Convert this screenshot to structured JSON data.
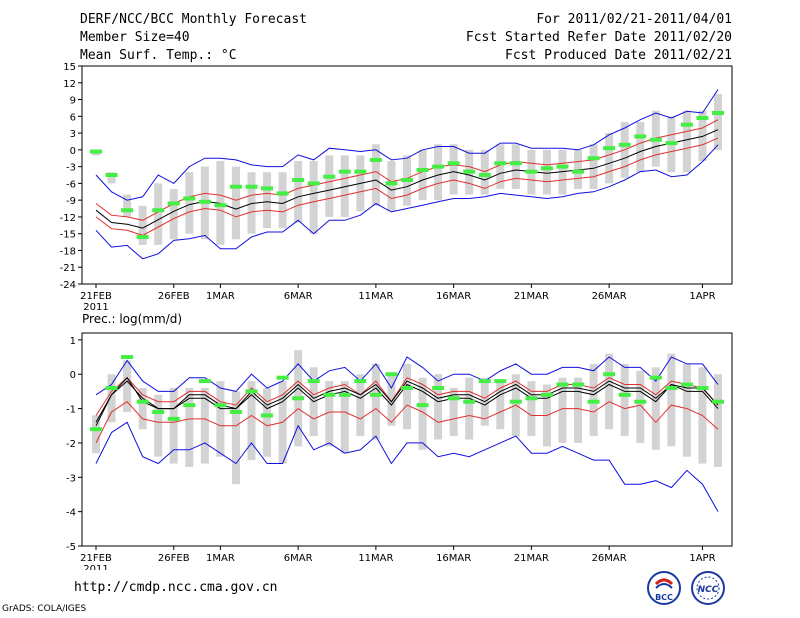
{
  "header": {
    "title": "DERF/NCC/BCC Monthly Forecast",
    "member_size": "Member Size=40",
    "variable": "Mean Surf. Temp.: °C",
    "period": "For 2011/02/21-2011/04/01",
    "started": "Fcst Started Refer Date 2011/02/20",
    "produced": "Fcst Produced Date 2011/02/21"
  },
  "footer": {
    "url": "http://cmdp.ncc.cma.gov.cn",
    "credit": "GrADS: COLA/IGES",
    "logo_bcc": "BCC",
    "logo_ncc": "NCC"
  },
  "colors": {
    "ensemble_mean": "#000000",
    "spread_inner": "#e03030",
    "spread_outer": "#1010e0",
    "member_range": "#d3d3d3",
    "observation": "#44ee44"
  },
  "chart_data": [
    {
      "type": "line",
      "title": "Mean Surf. Temp.: °C",
      "ylim": [
        -24,
        15
      ],
      "yticks": [
        15,
        12,
        9,
        6,
        3,
        0,
        -3,
        -6,
        -9,
        -12,
        -15,
        -18,
        -21,
        -24
      ],
      "xticks": [
        {
          "i": 0,
          "label": "21FEB",
          "sub": "2011"
        },
        {
          "i": 5,
          "label": "26FEB",
          "sub": ""
        },
        {
          "i": 8,
          "label": "1MAR",
          "sub": ""
        },
        {
          "i": 13,
          "label": "6MAR",
          "sub": ""
        },
        {
          "i": 18,
          "label": "11MAR",
          "sub": ""
        },
        {
          "i": 23,
          "label": "16MAR",
          "sub": ""
        },
        {
          "i": 28,
          "label": "21MAR",
          "sub": ""
        },
        {
          "i": 33,
          "label": "26MAR",
          "sub": ""
        },
        {
          "i": 39,
          "label": "1APR",
          "sub": ""
        }
      ],
      "series": [
        {
          "name": "ensemble mean",
          "color": "#000000",
          "values": [
            -10.8,
            -13,
            -13.3,
            -14,
            -12.5,
            -11,
            -9.8,
            -9.2,
            -9.6,
            -10.6,
            -9.6,
            -9.3,
            -9.6,
            -8.4,
            -7.8,
            -7.2,
            -6.6,
            -6.0,
            -5.4,
            -7.2,
            -6.6,
            -5.4,
            -4.5,
            -3.9,
            -4.5,
            -5.4,
            -4.2,
            -3.6,
            -3.9,
            -4.2,
            -3.9,
            -3.6,
            -3.3,
            -2.4,
            -1.5,
            -0.3,
            0.6,
            1.2,
            1.8,
            2.4,
            3.6
          ]
        },
        {
          "name": "inner spread (red) upper",
          "color": "#e03030",
          "values": [
            -9.6,
            -11.7,
            -12.0,
            -12.6,
            -11.1,
            -9.6,
            -8.4,
            -7.8,
            -8.1,
            -9.0,
            -8.1,
            -7.8,
            -8.1,
            -6.9,
            -6.3,
            -5.7,
            -5.1,
            -4.5,
            -3.9,
            -5.7,
            -5.1,
            -3.9,
            -3.0,
            -2.7,
            -3.0,
            -3.9,
            -2.7,
            -2.1,
            -2.4,
            -2.7,
            -2.4,
            -2.1,
            -1.8,
            -0.9,
            0.0,
            1.2,
            2.1,
            2.7,
            3.3,
            3.9,
            5.4
          ]
        },
        {
          "name": "inner spread (red) lower",
          "color": "#e03030",
          "values": [
            -12.0,
            -14.1,
            -14.4,
            -15.3,
            -13.8,
            -12.3,
            -11.1,
            -10.5,
            -10.8,
            -12.0,
            -11.1,
            -10.8,
            -11.1,
            -9.9,
            -9.3,
            -8.7,
            -8.1,
            -7.5,
            -6.9,
            -8.7,
            -8.1,
            -6.9,
            -6.0,
            -5.4,
            -6.0,
            -6.9,
            -5.7,
            -5.1,
            -5.4,
            -5.7,
            -5.4,
            -5.1,
            -4.8,
            -3.9,
            -3.0,
            -1.8,
            -0.9,
            -0.3,
            0.3,
            0.9,
            2.1
          ]
        },
        {
          "name": "outer spread (blue) upper",
          "color": "#1010e0",
          "values": [
            -4.5,
            -7.5,
            -9.0,
            -8.4,
            -4.5,
            -6.0,
            -3.0,
            -1.5,
            -1.5,
            -1.8,
            -2.7,
            -3.0,
            -3.0,
            -0.9,
            -1.8,
            0.3,
            0.0,
            -0.3,
            0.0,
            -1.8,
            -1.5,
            0.0,
            0.6,
            0.6,
            -0.6,
            -0.6,
            1.2,
            1.2,
            0.3,
            0.3,
            0.3,
            0.0,
            0.9,
            2.7,
            3.9,
            5.4,
            6.6,
            5.7,
            6.9,
            6.6,
            10.8
          ]
        },
        {
          "name": "outer spread (blue) lower",
          "color": "#1010e0",
          "values": [
            -14.4,
            -17.4,
            -17.1,
            -19.5,
            -18.6,
            -16.2,
            -15.9,
            -15.3,
            -17.7,
            -17.7,
            -15.6,
            -14.7,
            -14.7,
            -12.6,
            -15.0,
            -12.6,
            -12.6,
            -11.7,
            -9.6,
            -11.1,
            -10.5,
            -9.9,
            -9.3,
            -8.7,
            -8.7,
            -8.4,
            -7.8,
            -8.1,
            -8.4,
            -8.7,
            -8.4,
            -7.8,
            -7.5,
            -6.6,
            -5.4,
            -3.9,
            -3.6,
            -4.8,
            -4.5,
            -2.1,
            0.9
          ]
        }
      ],
      "bars_low": [
        -1,
        -6,
        -12,
        -17,
        -17,
        -16,
        -15,
        -16,
        -17,
        -16,
        -15,
        -14,
        -14,
        -13,
        -15,
        -12,
        -12,
        -11,
        -10,
        -11,
        -10,
        -9,
        -9,
        -8,
        -8,
        -8,
        -7,
        -7,
        -8,
        -8,
        -8,
        -7,
        -7,
        -6,
        -5,
        -4,
        -3,
        -4,
        -4,
        -2,
        0
      ],
      "bars_high": [
        0,
        -4,
        -8,
        -10,
        -6,
        -7,
        -4,
        -3,
        -2,
        -3,
        -4,
        -4,
        -4,
        -2,
        -2,
        -1,
        -1,
        -1,
        1,
        -2,
        -1,
        0,
        1,
        1,
        0,
        0,
        1,
        1,
        0,
        0,
        0,
        0,
        1,
        3,
        5,
        5,
        7,
        6,
        7,
        7,
        10
      ],
      "observations": [
        -0.3,
        -4.5,
        -10.8,
        -15.6,
        -10.8,
        -9.6,
        -8.7,
        -9.3,
        -9.9,
        -6.6,
        -6.6,
        -6.9,
        -7.8,
        -5.4,
        -6.0,
        -4.8,
        -3.9,
        -3.9,
        -1.8,
        -6.0,
        -5.4,
        -3.6,
        -3.0,
        -2.4,
        -3.9,
        -4.5,
        -2.4,
        -2.4,
        -3.9,
        -3.3,
        -3.0,
        -3.9,
        -1.5,
        0.3,
        0.9,
        2.4,
        1.8,
        1.2,
        4.5,
        5.7,
        6.6
      ]
    },
    {
      "type": "line",
      "title": "Prec.: log(mm/d)",
      "ylim": [
        -5,
        1.2
      ],
      "yticks": [
        1,
        0,
        -1,
        -2,
        -3,
        -4,
        -5
      ],
      "xticks": [
        {
          "i": 0,
          "label": "21FEB",
          "sub": "2011"
        },
        {
          "i": 5,
          "label": "26FEB",
          "sub": ""
        },
        {
          "i": 8,
          "label": "1MAR",
          "sub": ""
        },
        {
          "i": 13,
          "label": "6MAR",
          "sub": ""
        },
        {
          "i": 18,
          "label": "11MAR",
          "sub": ""
        },
        {
          "i": 23,
          "label": "16MAR",
          "sub": ""
        },
        {
          "i": 28,
          "label": "21MAR",
          "sub": ""
        },
        {
          "i": 33,
          "label": "26MAR",
          "sub": ""
        },
        {
          "i": 39,
          "label": "1APR",
          "sub": ""
        }
      ],
      "series": [
        {
          "name": "ensemble mean",
          "color": "#000000",
          "values": [
            -1.5,
            -0.6,
            -0.2,
            -0.7,
            -1.0,
            -1.0,
            -0.7,
            -0.7,
            -1.0,
            -1.0,
            -0.6,
            -1.0,
            -0.8,
            -0.4,
            -0.8,
            -0.6,
            -0.5,
            -0.7,
            -0.4,
            -0.9,
            -0.3,
            -0.5,
            -0.8,
            -0.7,
            -0.7,
            -0.9,
            -0.6,
            -0.4,
            -0.7,
            -0.7,
            -0.5,
            -0.5,
            -0.6,
            -0.3,
            -0.5,
            -0.5,
            -0.8,
            -0.3,
            -0.5,
            -0.5,
            -1.0
          ]
        },
        {
          "name": "inner spread (red) upper",
          "color": "#e03030",
          "values": [
            -1.2,
            -0.5,
            -0.1,
            -0.6,
            -0.8,
            -0.8,
            -0.5,
            -0.5,
            -0.8,
            -0.9,
            -0.4,
            -0.8,
            -0.6,
            -0.2,
            -0.6,
            -0.4,
            -0.3,
            -0.6,
            -0.2,
            -0.8,
            -0.1,
            -0.3,
            -0.6,
            -0.5,
            -0.5,
            -0.7,
            -0.4,
            -0.2,
            -0.5,
            -0.5,
            -0.3,
            -0.3,
            -0.4,
            -0.1,
            -0.3,
            -0.3,
            -0.6,
            -0.2,
            -0.3,
            -0.4,
            -0.9
          ]
        },
        {
          "name": "inner spread (red) lower",
          "color": "#e03030",
          "values": [
            -2.0,
            -1.1,
            -0.8,
            -1.3,
            -1.4,
            -1.4,
            -1.3,
            -1.3,
            -1.5,
            -1.5,
            -1.2,
            -1.5,
            -1.4,
            -1.0,
            -1.3,
            -1.1,
            -1.1,
            -1.3,
            -1.0,
            -1.4,
            -0.9,
            -1.1,
            -1.4,
            -1.3,
            -1.2,
            -1.3,
            -1.1,
            -0.9,
            -1.2,
            -1.2,
            -1.0,
            -1.0,
            -1.1,
            -0.8,
            -1.0,
            -0.9,
            -1.4,
            -0.9,
            -1.0,
            -1.2,
            -1.6
          ]
        },
        {
          "name": "outer spread (blue) upper",
          "color": "#1010e0",
          "values": [
            -0.6,
            -0.3,
            0.4,
            -0.2,
            -0.5,
            -0.5,
            -0.1,
            -0.1,
            -0.4,
            -0.5,
            0.0,
            -0.4,
            -0.2,
            0.3,
            -0.2,
            0.1,
            0.2,
            -0.2,
            0.3,
            -0.4,
            0.5,
            0.2,
            -0.2,
            0.0,
            0.0,
            -0.2,
            0.1,
            0.3,
            0.0,
            0.0,
            0.2,
            0.2,
            0.1,
            0.5,
            0.2,
            0.2,
            -0.2,
            0.5,
            0.3,
            0.3,
            -0.3
          ]
        },
        {
          "name": "outer spread (blue) lower",
          "color": "#1010e0",
          "values": [
            -2.6,
            -1.7,
            -1.4,
            -2.4,
            -2.6,
            -2.2,
            -2.2,
            -2.0,
            -2.3,
            -2.6,
            -2.0,
            -2.6,
            -2.6,
            -1.5,
            -2.2,
            -2.0,
            -2.3,
            -2.2,
            -1.8,
            -2.6,
            -2.0,
            -2.0,
            -2.4,
            -2.3,
            -2.4,
            -2.2,
            -2.0,
            -1.8,
            -2.3,
            -2.3,
            -2.1,
            -2.3,
            -2.5,
            -2.5,
            -3.2,
            -3.2,
            -3.1,
            -3.3,
            -2.8,
            -3.2,
            -4.0
          ]
        },
        {
          "name": "ensemble mean (second line)",
          "color": "#000000",
          "values": [
            -1.4,
            -0.6,
            -0.1,
            -0.8,
            -1.0,
            -1.0,
            -0.6,
            -0.6,
            -0.9,
            -1.0,
            -0.5,
            -0.9,
            -0.7,
            -0.3,
            -0.7,
            -0.5,
            -0.4,
            -0.6,
            -0.3,
            -0.8,
            -0.2,
            -0.4,
            -0.7,
            -0.6,
            -0.6,
            -0.8,
            -0.5,
            -0.3,
            -0.6,
            -0.6,
            -0.4,
            -0.4,
            -0.5,
            -0.2,
            -0.4,
            -0.4,
            -0.7,
            -0.3,
            -0.4,
            -0.4,
            -0.9
          ]
        }
      ],
      "bars_low": [
        -2.3,
        -1.4,
        -1.1,
        -1.6,
        -2.4,
        -2.6,
        -2.7,
        -2.6,
        -2.4,
        -3.2,
        -2.5,
        -2.4,
        -2.6,
        -2.1,
        -1.8,
        -2.1,
        -2.3,
        -1.8,
        -1.9,
        -1.5,
        -1.6,
        -2.2,
        -1.9,
        -1.8,
        -1.9,
        -1.5,
        -1.6,
        -1.8,
        -1.8,
        -2.1,
        -2.0,
        -2.0,
        -1.8,
        -1.6,
        -1.8,
        -2.0,
        -2.2,
        -2.1,
        -2.4,
        -2.6,
        -2.7
      ],
      "bars_high": [
        -1.2,
        0.0,
        0.4,
        -0.4,
        -0.6,
        -0.4,
        -0.4,
        -0.4,
        -0.2,
        -0.5,
        -0.2,
        -0.4,
        -0.2,
        0.7,
        0.2,
        -0.2,
        -0.2,
        0.0,
        0.3,
        0.0,
        0.3,
        -0.1,
        0.0,
        -0.4,
        -0.1,
        -0.1,
        -0.2,
        0.0,
        -0.2,
        -0.3,
        -0.1,
        -0.1,
        0.3,
        0.6,
        0.3,
        0.1,
        0.2,
        0.6,
        0.3,
        0.2,
        0.0
      ],
      "observations": [
        -1.6,
        -0.4,
        0.5,
        -0.8,
        -1.1,
        -1.3,
        -0.9,
        -0.2,
        -0.9,
        -1.1,
        -0.5,
        -1.2,
        -0.1,
        -0.7,
        -0.2,
        -0.6,
        -0.6,
        -0.2,
        -0.6,
        0.0,
        -0.4,
        -0.9,
        -0.4,
        -0.7,
        -0.8,
        -0.2,
        -0.2,
        -0.8,
        -0.7,
        -0.6,
        -0.3,
        -0.3,
        -0.8,
        0.0,
        -0.6,
        -0.8,
        -0.1,
        -0.4,
        -0.3,
        -0.4,
        -0.8
      ]
    }
  ]
}
